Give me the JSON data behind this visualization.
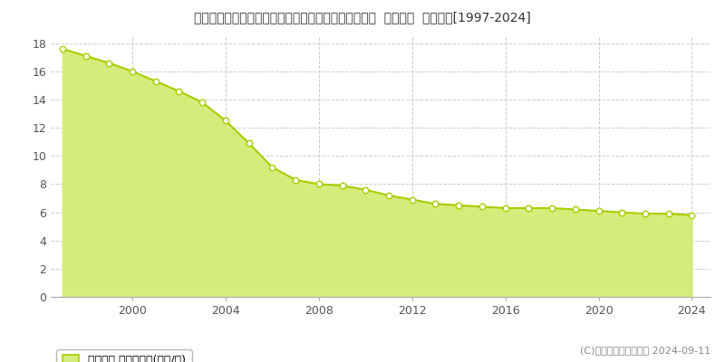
{
  "title": "埼玉県比企郡鳩山町大字大豆戸字七反田上２７９番２  地価公示  地価推移[1997-2024]",
  "years": [
    1997,
    1998,
    1999,
    2000,
    2001,
    2002,
    2003,
    2004,
    2005,
    2006,
    2007,
    2008,
    2009,
    2010,
    2011,
    2012,
    2013,
    2014,
    2015,
    2016,
    2017,
    2018,
    2019,
    2020,
    2021,
    2022,
    2023,
    2024
  ],
  "values": [
    17.6,
    17.1,
    16.6,
    16.0,
    15.3,
    14.6,
    13.8,
    12.5,
    10.9,
    9.2,
    8.3,
    8.0,
    7.9,
    7.6,
    7.2,
    6.9,
    6.6,
    6.5,
    6.4,
    6.3,
    6.3,
    6.3,
    6.2,
    6.1,
    6.0,
    5.9,
    5.9,
    5.8
  ],
  "line_color": "#aacc00",
  "fill_color": "#d4ed7a",
  "marker_facecolor": "white",
  "marker_edgecolor": "#aacc00",
  "bg_color": "#ffffff",
  "grid_color": "#cccccc",
  "yticks": [
    0,
    2,
    4,
    6,
    8,
    10,
    12,
    14,
    16,
    18
  ],
  "xticks": [
    2000,
    2004,
    2008,
    2012,
    2016,
    2020,
    2024
  ],
  "ylim": [
    0,
    18.5
  ],
  "xlim": [
    1996.5,
    2024.8
  ],
  "legend_label": "地価公示 平均坪単価(万円/坪)",
  "copyright_text": "(C)土地価格ドットコム 2024-09-11",
  "title_fontsize": 10,
  "tick_fontsize": 9,
  "legend_fontsize": 9
}
